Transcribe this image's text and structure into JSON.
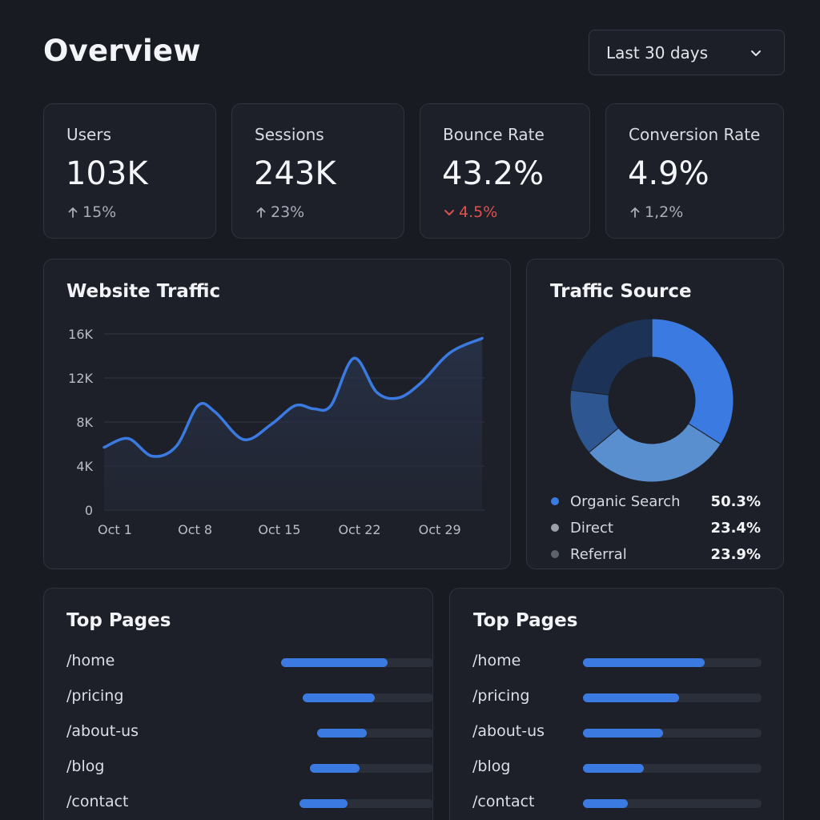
{
  "header": {
    "title": "Overview",
    "date_range": {
      "selected": "Last 30 days"
    }
  },
  "kpis": [
    {
      "label": "Users",
      "value": "103K",
      "delta": "15%",
      "direction": "up"
    },
    {
      "label": "Sessions",
      "value": "243K",
      "delta": "23%",
      "direction": "up"
    },
    {
      "label": "Bounce Rate",
      "value": "43.2%",
      "delta": "4.5%",
      "direction": "down"
    },
    {
      "label": "Conversion Rate",
      "value": "4.9%",
      "delta": "1,2%",
      "direction": "up"
    }
  ],
  "traffic": {
    "title": "Website Traffic",
    "chart_data": {
      "type": "area",
      "title": "Website Traffic",
      "xlabel": "",
      "ylabel": "",
      "ylim": [
        0,
        16000
      ],
      "y_ticks": [
        "16K",
        "12K",
        "8K",
        "4K",
        "0"
      ],
      "y_tick_values": [
        16000,
        12000,
        8000,
        4000,
        0
      ],
      "x_ticks": [
        "Oct 1",
        "Oct 8",
        "Oct 15",
        "Oct 22",
        "Oct 29"
      ],
      "x_tick_days": [
        1,
        8,
        15,
        22,
        29
      ],
      "xlim": [
        0.3,
        33.5
      ],
      "series": [
        {
          "name": "Traffic",
          "x": [
            0.3,
            2.4,
            4.5,
            6.6,
            8.5,
            10,
            12.5,
            14.9,
            17,
            18.6,
            20.1,
            22.1,
            24.1,
            26,
            28,
            30.5,
            33.3
          ],
          "values": [
            5700,
            6500,
            4900,
            5800,
            9500,
            8900,
            6400,
            7800,
            9500,
            9200,
            9500,
            13800,
            10700,
            10200,
            11600,
            14300,
            15600
          ]
        }
      ]
    }
  },
  "sources": {
    "title": "Traffic Source",
    "chart_data": {
      "type": "pie",
      "title": "Traffic Source",
      "labels": [
        "Organic Search",
        "Direct",
        "Referral"
      ],
      "values": [
        50.3,
        23.4,
        23.9
      ],
      "display_values": [
        "50.3%",
        "23.4%",
        "23.9%"
      ],
      "legend_colors": [
        "#3b7ae0",
        "#9ca0aa",
        "#5f636d"
      ],
      "donut_segments": [
        {
          "value": 0.34,
          "color": "#3b7ae0"
        },
        {
          "value": 0.3,
          "color": "#5a8fcf"
        },
        {
          "value": 0.13,
          "color": "#2e5690"
        },
        {
          "value": 0.23,
          "color": "#1d3257"
        }
      ]
    }
  },
  "top_pages_left": {
    "title": "Top Pages",
    "rows": [
      {
        "page": "/home",
        "fill": 0.7
      },
      {
        "page": "/pricing",
        "fill": 0.55
      },
      {
        "page": "/about-us",
        "fill": 0.43
      },
      {
        "page": "/blog",
        "fill": 0.4
      },
      {
        "page": "/contact",
        "fill": 0.36
      }
    ]
  },
  "top_pages_right": {
    "title": "Top Pages",
    "rows": [
      {
        "page": "/home",
        "fill": 0.68
      },
      {
        "page": "/pricing",
        "fill": 0.54
      },
      {
        "page": "/about-us",
        "fill": 0.45
      },
      {
        "page": "/blog",
        "fill": 0.34
      },
      {
        "page": "/contact",
        "fill": 0.25
      }
    ]
  },
  "colors": {
    "accent": "#3b7ae0",
    "negative": "#e0524c",
    "background": "#181b22",
    "card": "#1d2028"
  }
}
